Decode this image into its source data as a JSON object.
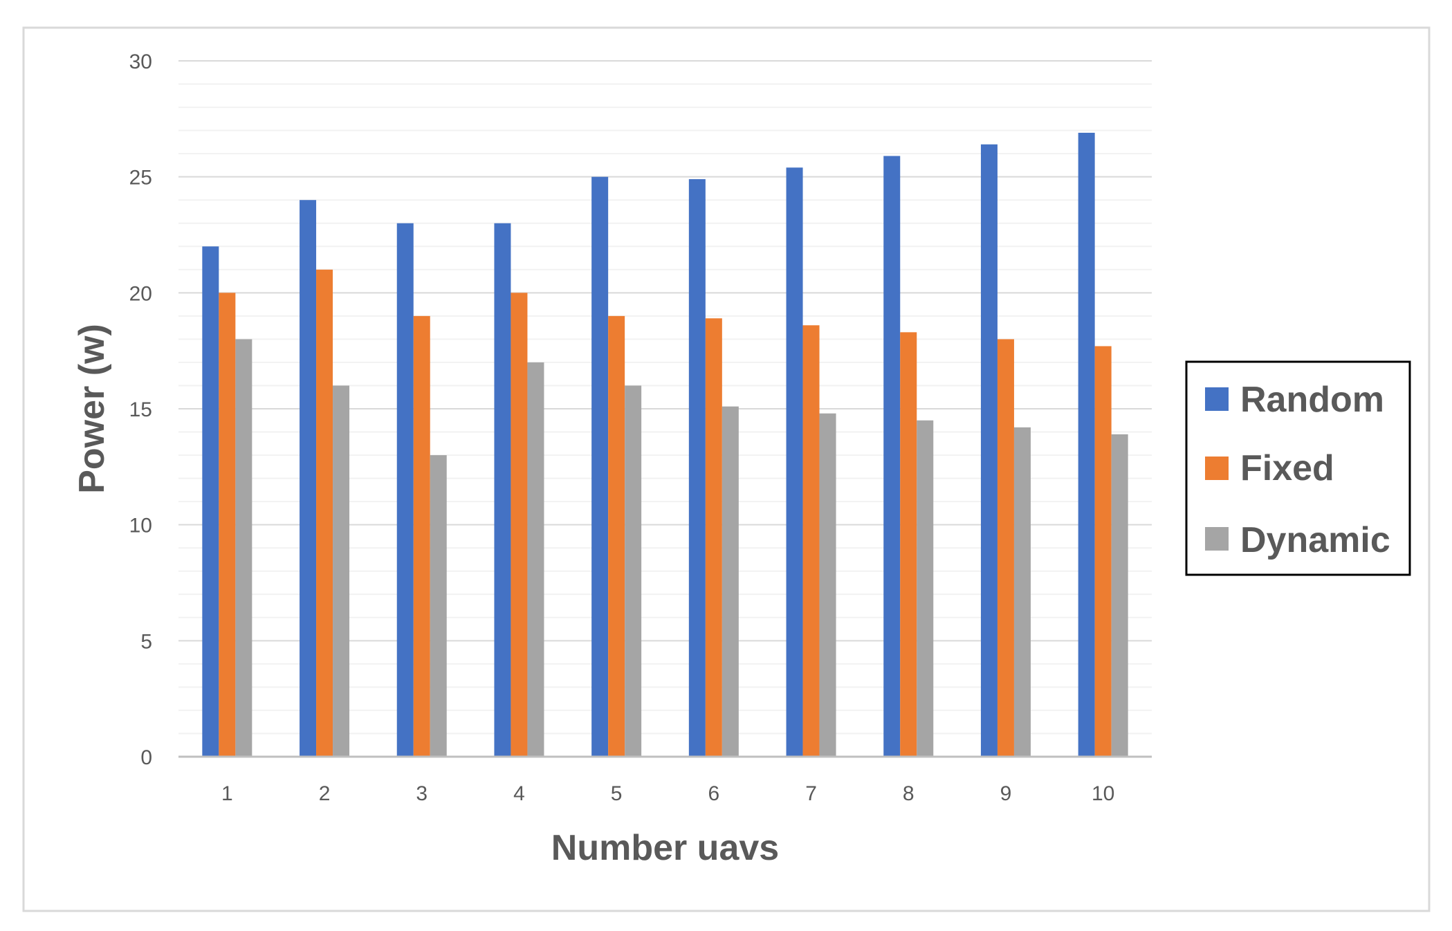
{
  "chart_data": {
    "type": "bar",
    "title": "",
    "xlabel": "Number uavs",
    "ylabel": "Power (w)",
    "ylim": [
      0,
      30
    ],
    "yticks": [
      0,
      5,
      10,
      15,
      20,
      25,
      30
    ],
    "minor_gridline_step": 1,
    "grid": true,
    "legend_position": "right",
    "categories": [
      "1",
      "2",
      "3",
      "4",
      "5",
      "6",
      "7",
      "8",
      "9",
      "10"
    ],
    "series": [
      {
        "name": "Random",
        "color": "#4472C4",
        "values": [
          22,
          24,
          23,
          23,
          25,
          24.9,
          25.4,
          25.9,
          26.4,
          26.9
        ]
      },
      {
        "name": "Fixed",
        "color": "#ED7D31",
        "values": [
          20,
          21,
          19,
          20,
          19,
          18.9,
          18.6,
          18.3,
          18,
          17.7
        ]
      },
      {
        "name": "Dynamic",
        "color": "#A5A5A5",
        "values": [
          18,
          16,
          13,
          17,
          16,
          15.1,
          14.8,
          14.5,
          14.2,
          13.9
        ]
      }
    ]
  }
}
